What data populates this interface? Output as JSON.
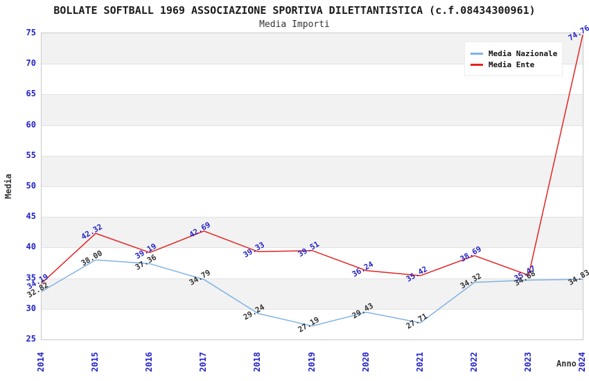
{
  "header": {
    "title": "BOLLATE SOFTBALL 1969 ASSOCIAZIONE SPORTIVA DILETTANTISTICA (c.f.08434300961)",
    "subtitle": "Media Importi"
  },
  "chart_data": {
    "type": "line",
    "x": [
      "2014",
      "2015",
      "2016",
      "2017",
      "2018",
      "2019",
      "2020",
      "2021",
      "2022",
      "2023",
      "2024"
    ],
    "series": [
      {
        "name": "Media Nazionale",
        "color": "#7fb2e5",
        "label_color": "#333333",
        "values": [
          32.82,
          38.0,
          37.36,
          34.79,
          29.24,
          27.19,
          29.43,
          27.71,
          34.32,
          34.68,
          34.83
        ],
        "value_labels": [
          "32.82",
          "38.00",
          "37.36",
          "34.79",
          "29.24",
          "27.19",
          "29.43",
          "27.71",
          "34.32",
          "34.68",
          "34.83"
        ]
      },
      {
        "name": "Media Ente",
        "color": "#e52222",
        "label_color": "#2424c4",
        "values": [
          34.19,
          42.32,
          39.19,
          42.69,
          39.33,
          39.51,
          36.24,
          35.42,
          38.69,
          35.47,
          74.76
        ],
        "value_labels": [
          "34.19",
          "42.32",
          "39.19",
          "42.69",
          "39.33",
          "39.51",
          "36.24",
          "35.42",
          "38.69",
          "35.47",
          "74.76"
        ]
      }
    ],
    "xlabel": "Anno",
    "ylabel": "Media",
    "ylim": [
      25,
      75
    ],
    "ytick_step": 5,
    "yticks": [
      25,
      30,
      35,
      40,
      45,
      50,
      55,
      60,
      65,
      70,
      75
    ],
    "grid": "horizontal gridlines with alternating gray bands",
    "legend_position": "top-right",
    "axis_tick_color": "#2222cc",
    "band_color": "#f2f2f2",
    "gridline_color": "#e2e2e2"
  }
}
